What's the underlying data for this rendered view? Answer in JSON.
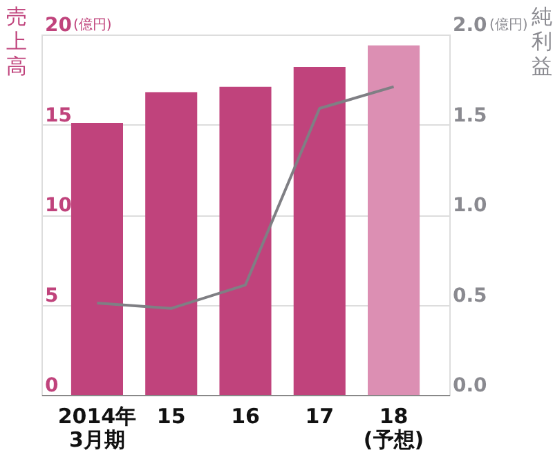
{
  "chart_data": {
    "type": "bar",
    "ylabel": "売上高",
    "y2label": "純利益",
    "categories": [
      "2014年\n3月期",
      "15",
      "16",
      "17",
      "18\n(予想)"
    ],
    "series": [
      {
        "colors": [
          "#c0437c",
          "#c0437c",
          "#c0437c",
          "#c0437c",
          "#dc8fb3"
        ],
        "values": [
          15.1,
          16.8,
          17.1,
          18.2,
          19.4
        ]
      },
      {
        "type": "line",
        "axis": "y2",
        "color": "#7f7f84",
        "values": [
          0.51,
          0.48,
          0.61,
          1.59,
          1.71
        ]
      }
    ],
    "ylim": [
      0,
      20
    ],
    "yticks": [
      0,
      5,
      10,
      15,
      20
    ],
    "y2lim": [
      0,
      2
    ],
    "y2ticks": [
      {
        "value": 0,
        "label": "0.0"
      },
      {
        "value": 0.5,
        "label": "0.5"
      },
      {
        "value": 1,
        "label": "1.0"
      },
      {
        "value": 1.5,
        "label": "1.5"
      },
      {
        "value": 2,
        "label": "2.0"
      }
    ],
    "annotations": [
      "(億円)",
      "(億円)"
    ],
    "grid": "y",
    "legend": false
  }
}
